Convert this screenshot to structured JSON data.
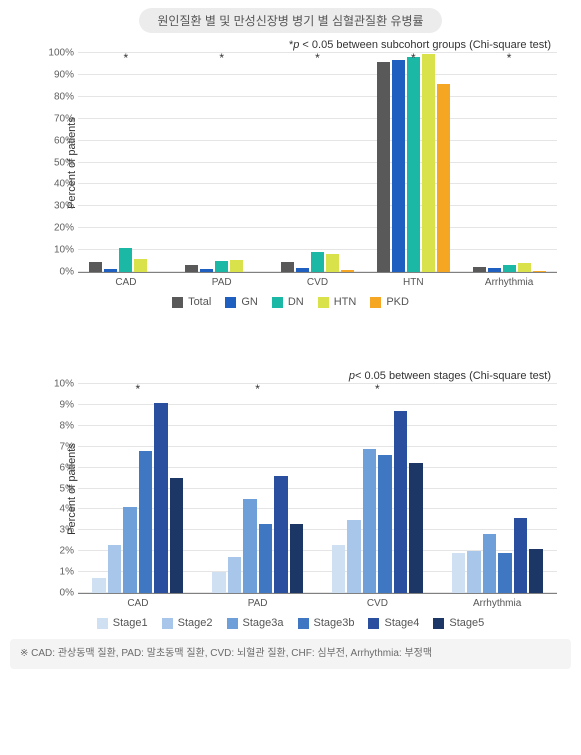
{
  "title": "원인질환 별 및 만성신장병 병기 별 심혈관질환 유병률",
  "chart1": {
    "type": "bar",
    "caption_prefix": "*",
    "caption_pvar": "p",
    "caption_text": " < 0.05 between subcohort groups (Chi-square test)",
    "ylabel": "Percent of patients",
    "ylim": [
      0,
      100
    ],
    "ytick_step": 10,
    "tick_suffix": "%",
    "grid_color": "#e5e5e5",
    "categories": [
      "CAD",
      "PAD",
      "CVD",
      "HTN",
      "Arrhythmia"
    ],
    "series": [
      {
        "name": "Total",
        "color": "#595959"
      },
      {
        "name": "GN",
        "color": "#1f5fbf"
      },
      {
        "name": "DN",
        "color": "#1cb8a6"
      },
      {
        "name": "HTN",
        "color": "#d9e24a"
      },
      {
        "name": "PKD",
        "color": "#f5a623"
      }
    ],
    "values": [
      [
        4.5,
        1.5,
        11.0,
        6.0,
        0.0
      ],
      [
        3.0,
        1.5,
        5.0,
        5.5,
        0.0
      ],
      [
        4.5,
        2.0,
        9.0,
        8.0,
        1.0
      ],
      [
        96.0,
        97.0,
        98.0,
        99.5,
        86.0
      ],
      [
        2.5,
        2.0,
        3.0,
        4.0,
        0.5
      ]
    ],
    "star": [
      "*",
      "*",
      "*",
      "*",
      "*"
    ]
  },
  "chart2": {
    "type": "bar",
    "caption_pvar": "p",
    "caption_text": "< 0.05 between stages (Chi-square test)",
    "ylabel": "Percent of patients",
    "ylim": [
      0,
      10
    ],
    "ytick_step": 1,
    "tick_suffix": "%",
    "grid_color": "#e5e5e5",
    "categories": [
      "CAD",
      "PAD",
      "CVD",
      "Arrhythmia"
    ],
    "series": [
      {
        "name": "Stage1",
        "color": "#cfe0f3"
      },
      {
        "name": "Stage2",
        "color": "#a7c6ea"
      },
      {
        "name": "Stage3a",
        "color": "#6f9fd8"
      },
      {
        "name": "Stage3b",
        "color": "#3f77c2"
      },
      {
        "name": "Stage4",
        "color": "#2a4f9e"
      },
      {
        "name": "Stage5",
        "color": "#1c3666"
      }
    ],
    "values": [
      [
        0.7,
        2.3,
        4.1,
        6.8,
        9.1,
        5.5
      ],
      [
        1.0,
        1.7,
        4.5,
        3.3,
        5.6,
        3.3
      ],
      [
        2.3,
        3.5,
        6.9,
        6.6,
        8.7,
        6.2
      ],
      [
        1.9,
        2.0,
        2.8,
        1.9,
        3.6,
        2.1
      ]
    ],
    "star": [
      "*",
      "*",
      "*",
      ""
    ]
  },
  "footnote": "※ CAD: 관상동맥 질환, PAD: 말초동맥 질환, CVD: 뇌혈관 질환, CHF: 심부전, Arrhythmia: 부정맥"
}
